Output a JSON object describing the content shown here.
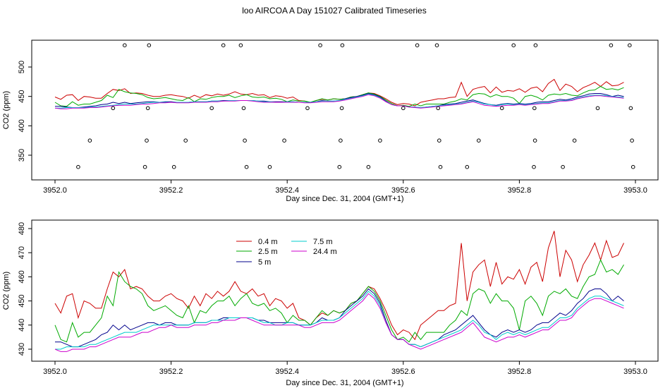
{
  "title": "loo AIRCOA A  Day 151027  Calibrated Timeseries",
  "chart_data": [
    {
      "type": "scatter",
      "title": "",
      "xlabel": "Day since Dec. 31, 2004 (GMT+1)",
      "ylabel": "CO2 (ppm)",
      "xlim": [
        3952.0,
        3953.0
      ],
      "ylim": [
        325,
        545
      ],
      "xticks": [
        "3952.0",
        "3952.2",
        "3952.4",
        "3952.6",
        "3952.8",
        "3953.0"
      ],
      "yticks": [
        "350",
        "400",
        "450",
        "500"
      ],
      "x": [
        3952.0,
        3952.01,
        3952.02,
        3952.03,
        3952.04,
        3952.05,
        3952.06,
        3952.07,
        3952.08,
        3952.09,
        3952.1,
        3952.11,
        3952.12,
        3952.13,
        3952.14,
        3952.15,
        3952.16,
        3952.17,
        3952.18,
        3952.19,
        3952.2,
        3952.21,
        3952.22,
        3952.23,
        3952.24,
        3952.25,
        3952.26,
        3952.27,
        3952.28,
        3952.29,
        3952.3,
        3952.31,
        3952.32,
        3952.33,
        3952.34,
        3952.35,
        3952.36,
        3952.37,
        3952.38,
        3952.39,
        3952.4,
        3952.41,
        3952.42,
        3952.43,
        3952.44,
        3952.45,
        3952.46,
        3952.47,
        3952.48,
        3952.49,
        3952.5,
        3952.51,
        3952.52,
        3952.53,
        3952.54,
        3952.55,
        3952.56,
        3952.57,
        3952.58,
        3952.59,
        3952.6,
        3952.61,
        3952.62,
        3952.63,
        3952.64,
        3952.65,
        3952.66,
        3952.67,
        3952.68,
        3952.69,
        3952.7,
        3952.71,
        3952.72,
        3952.73,
        3952.74,
        3952.75,
        3952.76,
        3952.77,
        3952.78,
        3952.79,
        3952.8,
        3952.81,
        3952.82,
        3952.83,
        3952.84,
        3952.85,
        3952.86,
        3952.87,
        3952.88,
        3952.89,
        3952.9,
        3952.91,
        3952.92,
        3952.93,
        3952.94,
        3952.95,
        3952.96,
        3952.97,
        3952.98
      ],
      "series": [
        {
          "name": "0.4 m",
          "color": "#cc0000",
          "values": [
            449,
            445,
            452,
            453,
            443,
            450,
            449,
            447,
            447,
            455,
            462,
            460,
            463,
            455,
            456,
            455,
            452,
            450,
            450,
            452,
            453,
            451,
            450,
            447,
            452,
            448,
            453,
            451,
            454,
            452,
            454,
            458,
            454,
            453,
            455,
            452,
            453,
            448,
            451,
            450,
            447,
            449,
            443,
            442,
            440,
            443,
            445,
            444,
            446,
            445,
            446,
            449,
            450,
            453,
            456,
            455,
            451,
            446,
            440,
            436,
            438,
            437,
            434,
            440,
            442,
            444,
            446,
            446,
            448,
            449,
            474,
            450,
            462,
            465,
            467,
            456,
            466,
            457,
            460,
            459,
            463,
            457,
            464,
            466,
            458,
            472,
            479,
            460,
            471,
            467,
            458,
            465,
            469,
            474,
            467,
            475,
            468,
            469,
            474
          ]
        },
        {
          "name": "2.5 m",
          "color": "#00aa00",
          "values": [
            440,
            434,
            433,
            441,
            435,
            437,
            437,
            440,
            443,
            452,
            448,
            462,
            458,
            456,
            455,
            453,
            448,
            446,
            447,
            448,
            446,
            444,
            443,
            448,
            441,
            446,
            445,
            448,
            450,
            450,
            452,
            448,
            451,
            453,
            449,
            448,
            449,
            446,
            447,
            445,
            441,
            444,
            442,
            442,
            440,
            443,
            446,
            444,
            446,
            445,
            446,
            449,
            450,
            453,
            456,
            454,
            450,
            444,
            438,
            434,
            435,
            433,
            437,
            434,
            437,
            437,
            437,
            437,
            440,
            442,
            446,
            444,
            453,
            455,
            454,
            449,
            453,
            450,
            450,
            447,
            438,
            450,
            452,
            449,
            444,
            452,
            454,
            453,
            455,
            452,
            451,
            456,
            460,
            461,
            467,
            462,
            463,
            461,
            465
          ]
        },
        {
          "name": "5 m",
          "color": "#00008b",
          "values": [
            433,
            433,
            432,
            431,
            431,
            432,
            433,
            434,
            436,
            437,
            440,
            438,
            440,
            438,
            439,
            440,
            441,
            441,
            440,
            441,
            441,
            440,
            440,
            440,
            441,
            441,
            441,
            442,
            442,
            443,
            443,
            443,
            443,
            443,
            443,
            442,
            442,
            441,
            441,
            441,
            441,
            441,
            440,
            440,
            440,
            441,
            443,
            442,
            442,
            443,
            446,
            448,
            450,
            452,
            455,
            453,
            449,
            442,
            436,
            434,
            434,
            432,
            432,
            431,
            432,
            433,
            434,
            436,
            437,
            438,
            440,
            442,
            444,
            441,
            438,
            436,
            435,
            437,
            438,
            437,
            438,
            437,
            438,
            440,
            441,
            441,
            443,
            445,
            444,
            446,
            449,
            451,
            454,
            455,
            455,
            453,
            450,
            452,
            450
          ]
        },
        {
          "name": "7.5 m",
          "color": "#00cccc",
          "values": [
            430,
            430,
            431,
            431,
            431,
            431,
            432,
            432,
            433,
            434,
            435,
            436,
            437,
            437,
            437,
            438,
            439,
            440,
            440,
            440,
            440,
            440,
            440,
            440,
            441,
            441,
            441,
            442,
            442,
            442,
            443,
            443,
            443,
            443,
            443,
            442,
            441,
            441,
            440,
            440,
            441,
            441,
            440,
            440,
            440,
            441,
            442,
            442,
            442,
            443,
            445,
            447,
            449,
            451,
            454,
            452,
            448,
            441,
            436,
            434,
            434,
            432,
            432,
            431,
            432,
            433,
            434,
            435,
            436,
            437,
            438,
            440,
            442,
            440,
            437,
            436,
            434,
            436,
            437,
            436,
            437,
            436,
            437,
            438,
            439,
            439,
            441,
            443,
            443,
            444,
            447,
            449,
            451,
            452,
            452,
            451,
            450,
            449,
            448
          ]
        },
        {
          "name": "24.4 m",
          "color": "#cc00cc",
          "values": [
            430,
            429,
            429,
            430,
            430,
            430,
            431,
            431,
            432,
            433,
            434,
            435,
            435,
            435,
            436,
            437,
            437,
            438,
            439,
            439,
            440,
            439,
            439,
            439,
            440,
            440,
            440,
            441,
            441,
            442,
            442,
            442,
            443,
            443,
            442,
            441,
            440,
            440,
            440,
            440,
            440,
            440,
            440,
            439,
            439,
            440,
            441,
            441,
            441,
            442,
            444,
            446,
            448,
            450,
            453,
            451,
            447,
            441,
            436,
            434,
            434,
            432,
            431,
            430,
            431,
            432,
            433,
            434,
            435,
            436,
            437,
            439,
            441,
            438,
            435,
            434,
            433,
            434,
            435,
            435,
            436,
            435,
            436,
            437,
            438,
            438,
            440,
            442,
            442,
            443,
            446,
            448,
            450,
            451,
            451,
            450,
            449,
            448,
            447
          ]
        }
      ],
      "markers": [
        {
          "x": 3952.04,
          "y": 330
        },
        {
          "x": 3952.06,
          "y": 375
        },
        {
          "x": 3952.1,
          "y": 430
        },
        {
          "x": 3952.12,
          "y": 537
        },
        {
          "x": 3952.155,
          "y": 330
        },
        {
          "x": 3952.158,
          "y": 375
        },
        {
          "x": 3952.16,
          "y": 430
        },
        {
          "x": 3952.162,
          "y": 537
        },
        {
          "x": 3952.205,
          "y": 330
        },
        {
          "x": 3952.225,
          "y": 375
        },
        {
          "x": 3952.27,
          "y": 430
        },
        {
          "x": 3952.29,
          "y": 537
        },
        {
          "x": 3952.32,
          "y": 537
        },
        {
          "x": 3952.325,
          "y": 430
        },
        {
          "x": 3952.327,
          "y": 375
        },
        {
          "x": 3952.33,
          "y": 330
        },
        {
          "x": 3952.37,
          "y": 330
        },
        {
          "x": 3952.395,
          "y": 375
        },
        {
          "x": 3952.435,
          "y": 430
        },
        {
          "x": 3952.457,
          "y": 537
        },
        {
          "x": 3952.49,
          "y": 330
        },
        {
          "x": 3952.492,
          "y": 375
        },
        {
          "x": 3952.494,
          "y": 430
        },
        {
          "x": 3952.495,
          "y": 537
        },
        {
          "x": 3952.54,
          "y": 330
        },
        {
          "x": 3952.56,
          "y": 375
        },
        {
          "x": 3952.6,
          "y": 430
        },
        {
          "x": 3952.624,
          "y": 537
        },
        {
          "x": 3952.658,
          "y": 537
        },
        {
          "x": 3952.66,
          "y": 430
        },
        {
          "x": 3952.662,
          "y": 375
        },
        {
          "x": 3952.664,
          "y": 330
        },
        {
          "x": 3952.71,
          "y": 330
        },
        {
          "x": 3952.73,
          "y": 375
        },
        {
          "x": 3952.77,
          "y": 430
        },
        {
          "x": 3952.79,
          "y": 537
        },
        {
          "x": 3952.825,
          "y": 330
        },
        {
          "x": 3952.826,
          "y": 430
        },
        {
          "x": 3952.827,
          "y": 375
        },
        {
          "x": 3952.828,
          "y": 537
        },
        {
          "x": 3952.875,
          "y": 330
        },
        {
          "x": 3952.895,
          "y": 375
        },
        {
          "x": 3952.935,
          "y": 430
        },
        {
          "x": 3952.958,
          "y": 537
        },
        {
          "x": 3952.99,
          "y": 537
        },
        {
          "x": 3952.992,
          "y": 430
        },
        {
          "x": 3952.994,
          "y": 375
        },
        {
          "x": 3952.996,
          "y": 330
        }
      ]
    },
    {
      "type": "line",
      "title": "",
      "xlabel": "Day since Dec. 31, 2004 (GMT+1)",
      "ylabel": "CO2 (ppm)",
      "xlim": [
        3952.0,
        3953.0
      ],
      "ylim": [
        428,
        481
      ],
      "xticks": [
        "3952.0",
        "3952.2",
        "3952.4",
        "3952.6",
        "3952.8",
        "3953.0"
      ],
      "yticks": [
        "430",
        "440",
        "450",
        "460",
        "470",
        "480"
      ],
      "legend": {
        "placement": "top-center",
        "entries": [
          "0.4 m",
          "2.5 m",
          "5 m",
          "7.5 m",
          "24.4 m"
        ]
      }
    }
  ]
}
